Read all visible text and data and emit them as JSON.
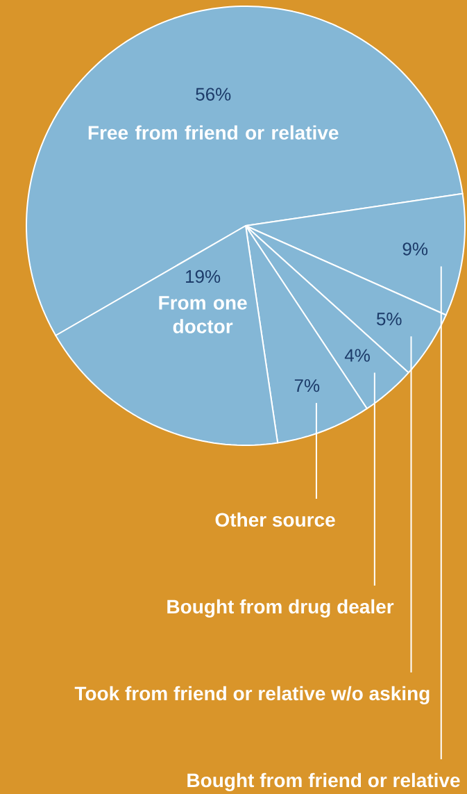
{
  "chart_data": {
    "type": "pie",
    "categories": [
      "Free from friend or relative",
      "Bought from friend or relative",
      "Took from friend or relative w/o asking",
      "Bought from drug dealer",
      "Other source",
      "From one doctor"
    ],
    "values": [
      56,
      9,
      5,
      4,
      7,
      19
    ],
    "colors": [
      "#84b7d6",
      "#84b7d6",
      "#84b7d6",
      "#84b7d6",
      "#84b7d6",
      "#84b7d6"
    ],
    "value_labels": [
      "56%",
      "9%",
      "5%",
      "4%",
      "7%",
      "19%"
    ]
  }
}
